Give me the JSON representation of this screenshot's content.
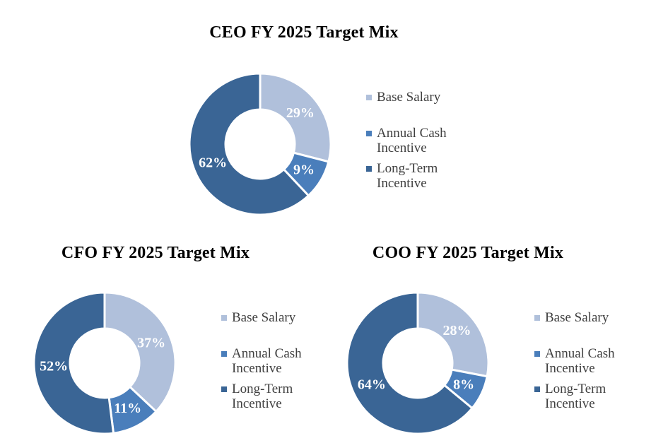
{
  "styles": {
    "background": "#ffffff",
    "title_color": "#000000",
    "legend_text_color": "#404040",
    "slice_label_color": "#ffffff",
    "slice_border_color": "#ffffff",
    "palette": {
      "base_salary": "#b0c0db",
      "annual_cash_incentive": "#4a7ebb",
      "long_term_incentive": "#3a6595"
    }
  },
  "chart_data": [
    {
      "type": "pie",
      "subtype": "donut",
      "title": "CEO FY 2025 Target Mix",
      "legend_position": "right",
      "series": [
        {
          "name": "Base Salary",
          "value": 29,
          "label": "29%",
          "color": "#b0c0db"
        },
        {
          "name": "Annual Cash Incentive",
          "value": 9,
          "label": "9%",
          "color": "#4a7ebb"
        },
        {
          "name": "Long-Term Incentive",
          "value": 62,
          "label": "62%",
          "color": "#3a6595"
        }
      ]
    },
    {
      "type": "pie",
      "subtype": "donut",
      "title": "CFO FY 2025 Target Mix",
      "legend_position": "right",
      "series": [
        {
          "name": "Base Salary",
          "value": 37,
          "label": "37%",
          "color": "#b0c0db"
        },
        {
          "name": "Annual Cash Incentive",
          "value": 11,
          "label": "11%",
          "color": "#4a7ebb"
        },
        {
          "name": "Long-Term Incentive",
          "value": 52,
          "label": "52%",
          "color": "#3a6595"
        }
      ]
    },
    {
      "type": "pie",
      "subtype": "donut",
      "title": "COO FY 2025 Target Mix",
      "legend_position": "right",
      "series": [
        {
          "name": "Base Salary",
          "value": 28,
          "label": "28%",
          "color": "#b0c0db"
        },
        {
          "name": "Annual Cash Incentive",
          "value": 8,
          "label": "8%",
          "color": "#4a7ebb"
        },
        {
          "name": "Long-Term Incentive",
          "value": 64,
          "label": "64%",
          "color": "#3a6595"
        }
      ]
    }
  ]
}
